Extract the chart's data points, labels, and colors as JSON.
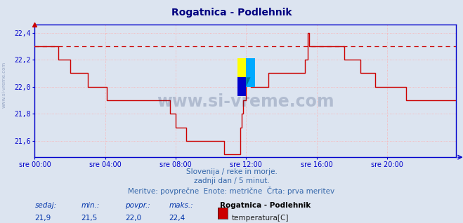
{
  "title": "Rogatnica - Podlehnik",
  "title_color": "#000080",
  "bg_color": "#dce4f0",
  "plot_bg_color": "#dce4f0",
  "line_color": "#cc0000",
  "dashed_line_color": "#cc0000",
  "dashed_line_value": 22.3,
  "grid_color": "#ffaaaa",
  "axis_color": "#0000cc",
  "tick_color": "#0000cc",
  "xlim": [
    0,
    287
  ],
  "ylim": [
    21.48,
    22.46
  ],
  "yticks": [
    21.6,
    21.8,
    22.0,
    22.2,
    22.4
  ],
  "xtick_labels": [
    "sre 00:00",
    "sre 04:00",
    "sre 08:00",
    "sre 12:00",
    "sre 16:00",
    "sre 20:00"
  ],
  "xtick_positions": [
    0,
    48,
    96,
    144,
    192,
    240
  ],
  "subtitle1": "Slovenija / reke in morje.",
  "subtitle2": "zadnji dan / 5 minut.",
  "subtitle3": "Meritve: povprečne  Enote: metrične  Črta: prva meritev",
  "footer_label1": "sedaj:",
  "footer_val1": "21,9",
  "footer_label2": "min.:",
  "footer_val2": "21,5",
  "footer_label3": "povpr.:",
  "footer_val3": "22,0",
  "footer_label4": "maks.:",
  "footer_val4": "22,4",
  "footer_station": "Rogatnica - Podlehnik",
  "footer_measure": "temperatura[C]",
  "watermark": "www.si-vreme.com",
  "sidebar_text": "www.si-vreme.com",
  "temperature_data": [
    22.3,
    22.3,
    22.3,
    22.3,
    22.3,
    22.3,
    22.3,
    22.3,
    22.3,
    22.3,
    22.3,
    22.3,
    22.3,
    22.3,
    22.3,
    22.3,
    22.2,
    22.2,
    22.2,
    22.2,
    22.2,
    22.2,
    22.2,
    22.2,
    22.1,
    22.1,
    22.1,
    22.1,
    22.1,
    22.1,
    22.1,
    22.1,
    22.1,
    22.1,
    22.1,
    22.1,
    22.0,
    22.0,
    22.0,
    22.0,
    22.0,
    22.0,
    22.0,
    22.0,
    22.0,
    22.0,
    22.0,
    22.0,
    22.0,
    21.9,
    21.9,
    21.9,
    21.9,
    21.9,
    21.9,
    21.9,
    21.9,
    21.9,
    21.9,
    21.9,
    21.9,
    21.9,
    21.9,
    21.9,
    21.9,
    21.9,
    21.9,
    21.9,
    21.9,
    21.9,
    21.9,
    21.9,
    21.9,
    21.9,
    21.9,
    21.9,
    21.9,
    21.9,
    21.9,
    21.9,
    21.9,
    21.9,
    21.9,
    21.9,
    21.9,
    21.9,
    21.9,
    21.9,
    21.9,
    21.9,
    21.9,
    21.9,
    21.8,
    21.8,
    21.8,
    21.8,
    21.7,
    21.7,
    21.7,
    21.7,
    21.7,
    21.7,
    21.7,
    21.6,
    21.6,
    21.6,
    21.6,
    21.6,
    21.6,
    21.6,
    21.6,
    21.6,
    21.6,
    21.6,
    21.6,
    21.6,
    21.6,
    21.6,
    21.6,
    21.6,
    21.6,
    21.6,
    21.6,
    21.6,
    21.6,
    21.6,
    21.6,
    21.6,
    21.6,
    21.5,
    21.5,
    21.5,
    21.5,
    21.5,
    21.5,
    21.5,
    21.5,
    21.5,
    21.5,
    21.5,
    21.7,
    21.8,
    21.9,
    21.9,
    22.2,
    22.1,
    22.1,
    22.0,
    22.0,
    22.0,
    22.0,
    22.0,
    22.0,
    22.0,
    22.0,
    22.0,
    22.0,
    22.0,
    22.0,
    22.1,
    22.1,
    22.1,
    22.1,
    22.1,
    22.1,
    22.1,
    22.1,
    22.1,
    22.1,
    22.1,
    22.1,
    22.1,
    22.1,
    22.1,
    22.1,
    22.1,
    22.1,
    22.1,
    22.1,
    22.1,
    22.1,
    22.1,
    22.1,
    22.1,
    22.2,
    22.2,
    22.4,
    22.3,
    22.3,
    22.3,
    22.3,
    22.3,
    22.3,
    22.3,
    22.3,
    22.3,
    22.3,
    22.3,
    22.3,
    22.3,
    22.3,
    22.3,
    22.3,
    22.3,
    22.3,
    22.3,
    22.3,
    22.3,
    22.3,
    22.3,
    22.3,
    22.2,
    22.2,
    22.2,
    22.2,
    22.2,
    22.2,
    22.2,
    22.2,
    22.2,
    22.2,
    22.2,
    22.1,
    22.1,
    22.1,
    22.1,
    22.1,
    22.1,
    22.1,
    22.1,
    22.1,
    22.1,
    22.0,
    22.0,
    22.0,
    22.0,
    22.0,
    22.0,
    22.0,
    22.0,
    22.0,
    22.0,
    22.0,
    22.0,
    22.0,
    22.0,
    22.0,
    22.0,
    22.0,
    22.0,
    22.0,
    22.0,
    22.0,
    21.9,
    21.9,
    21.9,
    21.9,
    21.9,
    21.9,
    21.9,
    21.9,
    21.9,
    21.9,
    21.9,
    21.9,
    21.9,
    21.9,
    21.9,
    21.9,
    21.9,
    21.9,
    21.9,
    21.9,
    21.9,
    21.9,
    21.9,
    21.9,
    21.9,
    21.9,
    21.9,
    21.9,
    21.9,
    21.9,
    21.9,
    21.9,
    21.9,
    21.9,
    21.9,
    21.9,
    21.9,
    21.9
  ]
}
